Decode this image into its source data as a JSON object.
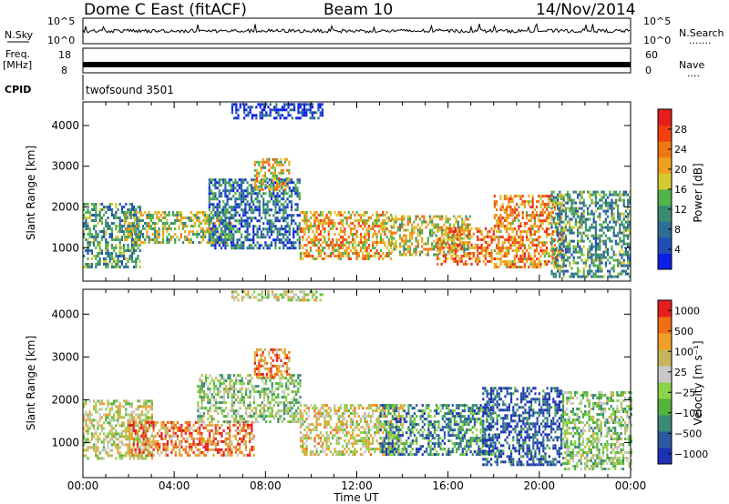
{
  "header": {
    "station": "Dome C East (fitACF)",
    "beam": "Beam 10",
    "date": "14/Nov/2014"
  },
  "status": {
    "nsky_label": "N.Sky",
    "nsky_top": "10^5",
    "nsky_bottom": "10^0",
    "nsearch_label": "N.Search",
    "nsearch_top": "10^5",
    "nsearch_bottom": "10^0",
    "freq_label": "Freq.",
    "freq_unit": "[MHz]",
    "freq_top": "18",
    "freq_bottom": "8",
    "nave_label": "Nave",
    "nave_top": "60",
    "nave_bottom": "0",
    "cpid_label": "CPID",
    "cpid_value": "twofsound 3501"
  },
  "colors": {
    "power": [
      "#0a1ee6",
      "#1f4fb4",
      "#2e6e96",
      "#3a8c6e",
      "#52b34a",
      "#d6c832",
      "#f0a020",
      "#f07814",
      "#f04010",
      "#e61e1e"
    ],
    "velocity": [
      "#1e32b4",
      "#2a5aa0",
      "#3a8a78",
      "#52b43a",
      "#8cd24a",
      "#c8c8c8",
      "#c8b45a",
      "#f0a028",
      "#f06e14",
      "#e61e1e"
    ]
  },
  "chart_data": [
    {
      "type": "heatmap",
      "name": "power",
      "ylabel": "Slant Range [km]",
      "x_ticks": [
        "00:00",
        "04:00",
        "08:00",
        "12:00",
        "16:00",
        "20:00",
        "00:00"
      ],
      "x_range_hours": [
        0,
        24
      ],
      "y_ticks": [
        1000,
        2000,
        3000,
        4000
      ],
      "ylim": [
        180,
        4580
      ],
      "colorbar": {
        "label": "Power [dB]",
        "ticks": [
          "4",
          "8",
          "12",
          "16",
          "20",
          "24",
          "28"
        ],
        "range": [
          0,
          32
        ]
      },
      "echo_regions": [
        {
          "t0": 0.0,
          "t1": 2.5,
          "r0": 500,
          "r1": 2100,
          "level": 0.35
        },
        {
          "t0": 1.8,
          "t1": 6.5,
          "r0": 1100,
          "r1": 1900,
          "level": 0.5
        },
        {
          "t0": 5.5,
          "t1": 9.5,
          "r0": 1000,
          "r1": 2700,
          "level": 0.25
        },
        {
          "t0": 7.5,
          "t1": 9.0,
          "r0": 2400,
          "r1": 3200,
          "level": 0.6
        },
        {
          "t0": 9.5,
          "t1": 13.5,
          "r0": 700,
          "r1": 1900,
          "level": 0.65
        },
        {
          "t0": 13.5,
          "t1": 17.0,
          "r0": 800,
          "r1": 1800,
          "level": 0.55
        },
        {
          "t0": 15.5,
          "t1": 18.0,
          "r0": 600,
          "r1": 1500,
          "level": 0.75
        },
        {
          "t0": 18.0,
          "t1": 21.0,
          "r0": 500,
          "r1": 2300,
          "level": 0.7
        },
        {
          "t0": 20.5,
          "t1": 24.0,
          "r0": 300,
          "r1": 2400,
          "level": 0.35
        },
        {
          "t0": 6.5,
          "t1": 10.5,
          "r0": 4200,
          "r1": 4550,
          "level": 0.1
        }
      ]
    },
    {
      "type": "heatmap",
      "name": "velocity",
      "ylabel": "Slant Range [km]",
      "xlabel": "Time UT",
      "x_ticks": [
        "00:00",
        "04:00",
        "08:00",
        "12:00",
        "16:00",
        "20:00",
        "00:00"
      ],
      "x_range_hours": [
        0,
        24
      ],
      "y_ticks": [
        1000,
        2000,
        3000,
        4000
      ],
      "ylim": [
        180,
        4580
      ],
      "colorbar": {
        "label": "Velocity [m s⁻¹]",
        "ticks": [
          "1000",
          "500",
          "100",
          "25",
          "−25",
          "−100",
          "−500",
          "−1000"
        ]
      },
      "echo_regions": [
        {
          "t0": 0.0,
          "t1": 3.0,
          "r0": 600,
          "r1": 2000,
          "level": 0.55
        },
        {
          "t0": 2.0,
          "t1": 7.5,
          "r0": 700,
          "r1": 1500,
          "level": 0.8
        },
        {
          "t0": 5.0,
          "t1": 9.5,
          "r0": 1500,
          "r1": 2600,
          "level": 0.45
        },
        {
          "t0": 7.5,
          "t1": 9.0,
          "r0": 2500,
          "r1": 3200,
          "level": 0.8
        },
        {
          "t0": 9.5,
          "t1": 14.0,
          "r0": 700,
          "r1": 1900,
          "level": 0.6
        },
        {
          "t0": 13.0,
          "t1": 18.0,
          "r0": 700,
          "r1": 1900,
          "level": 0.25
        },
        {
          "t0": 17.5,
          "t1": 21.0,
          "r0": 500,
          "r1": 2300,
          "level": 0.1
        },
        {
          "t0": 21.0,
          "t1": 24.0,
          "r0": 400,
          "r1": 2200,
          "level": 0.45
        },
        {
          "t0": 6.5,
          "t1": 10.5,
          "r0": 4300,
          "r1": 4550,
          "level": 0.55
        }
      ]
    }
  ]
}
